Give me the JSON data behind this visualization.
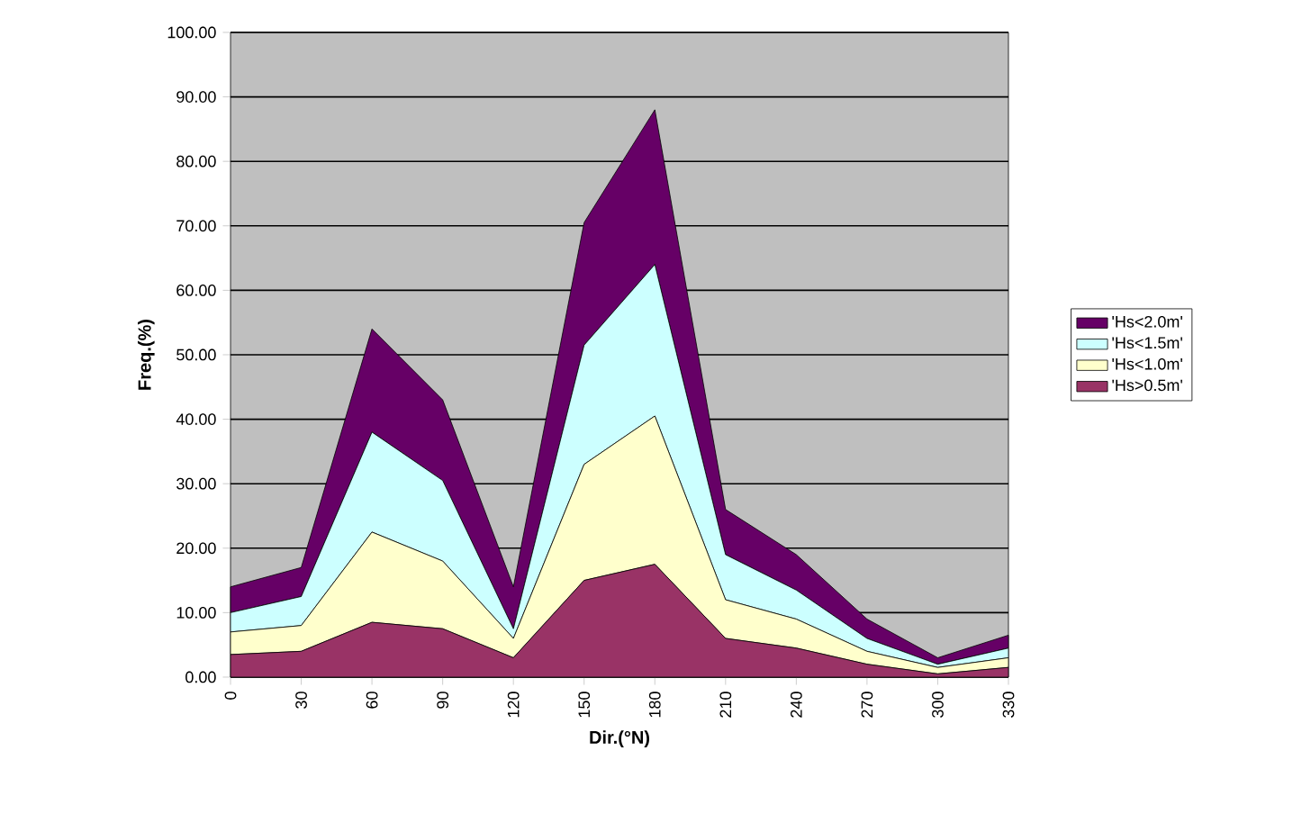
{
  "chart_data": {
    "type": "area",
    "stacked": true,
    "xlabel": "Dir.(°N)",
    "ylabel": "Freq.(%)",
    "x": [
      0,
      30,
      60,
      90,
      120,
      150,
      180,
      210,
      240,
      270,
      300,
      330
    ],
    "series": [
      {
        "name": "'Hs>0.5m'",
        "color": "#993366",
        "values": [
          3.5,
          4,
          8.5,
          7.5,
          3,
          15,
          17.5,
          6,
          4.5,
          2,
          0.5,
          1.5
        ]
      },
      {
        "name": "'Hs<1.0m'",
        "color": "#ffffcc",
        "values": [
          3.5,
          4,
          14,
          10.5,
          3,
          18,
          23,
          6,
          4.5,
          2,
          1,
          1.5
        ]
      },
      {
        "name": "'Hs<1.5m'",
        "color": "#ccffff",
        "values": [
          3,
          4.5,
          15.5,
          12.5,
          1.5,
          18.5,
          23.5,
          7,
          4.5,
          2,
          0.5,
          1.5
        ]
      },
      {
        "name": "'Hs<2.0m'",
        "color": "#660066",
        "values": [
          4,
          4.5,
          16,
          12.5,
          6.5,
          19,
          24,
          7,
          5.5,
          3,
          1,
          2
        ]
      }
    ],
    "xlim": [
      0,
      330
    ],
    "xticks": [
      0,
      30,
      60,
      90,
      120,
      150,
      180,
      210,
      240,
      270,
      300,
      330
    ],
    "ylim": [
      0,
      100
    ],
    "yticks": [
      {
        "value": 0,
        "label": "0.00"
      },
      {
        "value": 10,
        "label": "10.00"
      },
      {
        "value": 20,
        "label": "20.00"
      },
      {
        "value": 30,
        "label": "30.00"
      },
      {
        "value": 40,
        "label": "40.00"
      },
      {
        "value": 50,
        "label": "50.00"
      },
      {
        "value": 60,
        "label": "60.00"
      },
      {
        "value": 70,
        "label": "70.00"
      },
      {
        "value": 80,
        "label": "80.00"
      },
      {
        "value": 90,
        "label": "90.00"
      },
      {
        "value": 100,
        "label": "100.00"
      }
    ],
    "grid": "y",
    "legend": "right"
  }
}
